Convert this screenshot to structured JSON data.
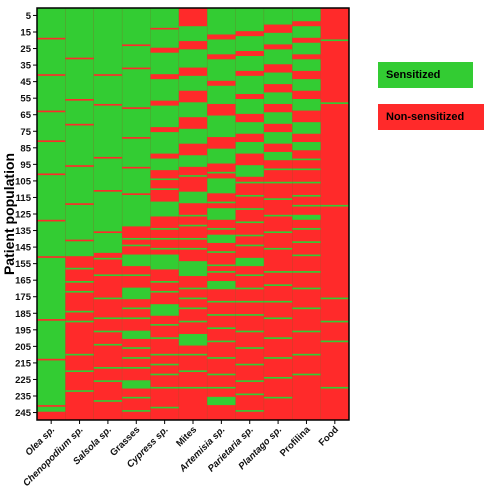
{
  "chart_data": {
    "type": "heatmap",
    "ylabel": "Patient population",
    "xlabel": "",
    "categories": [
      "Olea sp.",
      "Chenopodium sp.",
      "Salsola sp.",
      "Grasses",
      "Cypress sp.",
      "Mites",
      "Artemisia sp.",
      "Parietaria sp.",
      "Plantago sp.",
      "Profilina",
      "Food"
    ],
    "category_italic": [
      true,
      true,
      true,
      false,
      true,
      false,
      true,
      true,
      true,
      false,
      false
    ],
    "y_ticks": [
      5,
      15,
      25,
      35,
      45,
      55,
      65,
      75,
      85,
      95,
      105,
      115,
      125,
      135,
      145,
      155,
      165,
      175,
      185,
      195,
      205,
      215,
      225,
      235,
      245
    ],
    "ylim": [
      1,
      249
    ],
    "n_patients": 249,
    "value_coding": {
      "1": "Sensitized",
      "0": "Non-sensitized"
    },
    "sensitized_ranges": [
      {
        "allergen": "Olea sp.",
        "sensitized_rows": [
          [
            1,
            18
          ],
          [
            20,
            40
          ],
          [
            42,
            62
          ],
          [
            64,
            80
          ],
          [
            82,
            100
          ],
          [
            102,
            128
          ],
          [
            130,
            150
          ],
          [
            152,
            188
          ],
          [
            190,
            212
          ],
          [
            214,
            240
          ],
          [
            242,
            244
          ]
        ]
      },
      {
        "allergen": "Chenopodium sp.",
        "sensitized_rows": [
          [
            1,
            30
          ],
          [
            32,
            55
          ],
          [
            57,
            70
          ],
          [
            72,
            95
          ],
          [
            97,
            118
          ],
          [
            120,
            140
          ],
          [
            142,
            150
          ]
        ]
      },
      {
        "allergen": "Salsola sp.",
        "sensitized_rows": [
          [
            1,
            40
          ],
          [
            42,
            58
          ],
          [
            60,
            90
          ],
          [
            92,
            110
          ],
          [
            112,
            135
          ],
          [
            137,
            148
          ]
        ]
      },
      {
        "allergen": "Grasses",
        "sensitized_rows": [
          [
            1,
            22
          ],
          [
            24,
            36
          ],
          [
            38,
            60
          ],
          [
            62,
            78
          ],
          [
            80,
            96
          ],
          [
            98,
            112
          ],
          [
            114,
            132
          ],
          [
            150,
            156
          ],
          [
            170,
            176
          ],
          [
            196,
            200
          ],
          [
            226,
            230
          ]
        ]
      },
      {
        "allergen": "Cypress sp.",
        "sensitized_rows": [
          [
            1,
            12
          ],
          [
            14,
            24
          ],
          [
            28,
            40
          ],
          [
            44,
            56
          ],
          [
            60,
            72
          ],
          [
            76,
            88
          ],
          [
            92,
            98
          ],
          [
            118,
            126
          ],
          [
            150,
            158
          ],
          [
            180,
            186
          ]
        ]
      },
      {
        "allergen": "Mites",
        "sensitized_rows": [
          [
            12,
            20
          ],
          [
            26,
            36
          ],
          [
            42,
            50
          ],
          [
            58,
            66
          ],
          [
            74,
            82
          ],
          [
            90,
            96
          ],
          [
            112,
            118
          ],
          [
            154,
            162
          ],
          [
            198,
            204
          ]
        ]
      },
      {
        "allergen": "Artemisia sp.",
        "sensitized_rows": [
          [
            1,
            16
          ],
          [
            20,
            28
          ],
          [
            32,
            44
          ],
          [
            48,
            58
          ],
          [
            66,
            78
          ],
          [
            86,
            94
          ],
          [
            104,
            112
          ],
          [
            122,
            128
          ],
          [
            138,
            142
          ],
          [
            166,
            170
          ],
          [
            236,
            240
          ]
        ]
      },
      {
        "allergen": "Parietaria sp.",
        "sensitized_rows": [
          [
            1,
            14
          ],
          [
            18,
            26
          ],
          [
            30,
            38
          ],
          [
            42,
            52
          ],
          [
            56,
            64
          ],
          [
            70,
            76
          ],
          [
            82,
            88
          ],
          [
            96,
            102
          ],
          [
            152,
            156
          ]
        ]
      },
      {
        "allergen": "Plantago sp.",
        "sensitized_rows": [
          [
            1,
            10
          ],
          [
            16,
            22
          ],
          [
            26,
            34
          ],
          [
            40,
            46
          ],
          [
            52,
            58
          ],
          [
            64,
            70
          ],
          [
            76,
            82
          ],
          [
            88,
            92
          ]
        ]
      },
      {
        "allergen": "Profilina",
        "sensitized_rows": [
          [
            1,
            8
          ],
          [
            12,
            18
          ],
          [
            22,
            28
          ],
          [
            32,
            38
          ],
          [
            44,
            50
          ],
          [
            56,
            62
          ],
          [
            70,
            76
          ],
          [
            82,
            86
          ],
          [
            126,
            128
          ]
        ]
      },
      {
        "allergen": "Food",
        "sensitized_rows": []
      }
    ],
    "sparse_sensitized_rows": [
      {
        "allergen": "Olea sp.",
        "rows": []
      },
      {
        "allergen": "Chenopodium sp.",
        "rows": [
          158,
          166,
          172,
          184,
          190,
          210,
          220,
          232
        ]
      },
      {
        "allergen": "Salsola sp.",
        "rows": [
          152,
          162,
          176,
          188,
          196,
          204,
          218,
          226,
          238
        ]
      },
      {
        "allergen": "Grasses",
        "rows": [
          140,
          144,
          162,
          182,
          188,
          206,
          212,
          218,
          236,
          244
        ]
      },
      {
        "allergen": "Cypress sp.",
        "rows": [
          104,
          110,
          134,
          140,
          146,
          166,
          172,
          192,
          200,
          210,
          216,
          222,
          230,
          242
        ]
      },
      {
        "allergen": "Mites",
        "rows": [
          102,
          126,
          132,
          140,
          146,
          170,
          176,
          182,
          190,
          210,
          220,
          230
        ]
      },
      {
        "allergen": "Artemisia sp.",
        "rows": [
          100,
          118,
          134,
          148,
          156,
          160,
          178,
          186,
          194,
          202,
          212,
          222,
          230
        ]
      },
      {
        "allergen": "Parietaria sp.",
        "rows": [
          106,
          114,
          122,
          130,
          138,
          144,
          162,
          170,
          178,
          186,
          196,
          206,
          216,
          226,
          234,
          244
        ]
      },
      {
        "allergen": "Plantago sp.",
        "rows": [
          98,
          106,
          116,
          126,
          136,
          146,
          160,
          168,
          178,
          188,
          200,
          212,
          224,
          236
        ]
      },
      {
        "allergen": "Profilina",
        "rows": [
          92,
          98,
          106,
          114,
          120,
          134,
          142,
          150,
          160,
          170,
          182,
          196,
          210,
          222
        ]
      },
      {
        "allergen": "Food",
        "rows": [
          20,
          58,
          120,
          176,
          190,
          202,
          230
        ]
      }
    ],
    "legend": [
      {
        "label": "Sensitized",
        "color": "#33cc33"
      },
      {
        "label": "Non-sensitized",
        "color": "#ff2a2a"
      }
    ],
    "legend_position": "right",
    "colors": {
      "sensitized": "#33cc33",
      "non_sensitized": "#ff2a2a",
      "frame": "#000000"
    }
  }
}
